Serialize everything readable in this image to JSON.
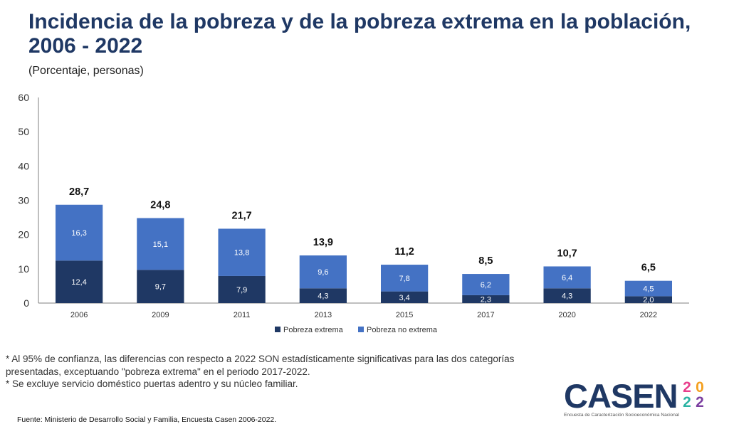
{
  "header": {
    "title": "Incidencia de la pobreza y de la pobreza extrema en la población, 2006 - 2022",
    "subtitle": "(Porcentaje, personas)"
  },
  "chart_data": {
    "type": "bar",
    "stacked": true,
    "categories": [
      "2006",
      "2009",
      "2011",
      "2013",
      "2015",
      "2017",
      "2020",
      "2022"
    ],
    "series": [
      {
        "name": "Pobreza extrema",
        "values": [
          12.4,
          9.7,
          7.9,
          4.3,
          3.4,
          2.3,
          4.3,
          2.0
        ],
        "labels": [
          "12,4",
          "9,7",
          "7,9",
          "4,3",
          "3,4",
          "2,3",
          "4,3",
          "2,0"
        ],
        "color": "#1f3864"
      },
      {
        "name": "Pobreza no extrema",
        "values": [
          16.3,
          15.1,
          13.8,
          9.6,
          7.8,
          6.2,
          6.4,
          4.5
        ],
        "labels": [
          "16,3",
          "15,1",
          "13,8",
          "9,6",
          "7,8",
          "6,2",
          "6,4",
          "4,5"
        ],
        "color": "#4472c4"
      }
    ],
    "totals": [
      28.7,
      24.8,
      21.7,
      13.9,
      11.2,
      8.5,
      10.7,
      6.5
    ],
    "total_labels": [
      "28,7",
      "24,8",
      "21,7",
      "13,9",
      "11,2",
      "8,5",
      "10,7",
      "6,5"
    ],
    "ylim": [
      0,
      60
    ],
    "yticks": [
      "0",
      "10",
      "20",
      "30",
      "40",
      "50",
      "60"
    ],
    "grid": false,
    "legend_position": "bottom"
  },
  "notes": [
    "* Al 95% de confianza, las diferencias con respecto a 2022 SON estadísticamente significativas para las dos categorías",
    "presentadas, exceptuando \"pobreza extrema\" en el periodo 2017-2022.",
    "* Se excluye servicio doméstico puertas adentro y su núcleo familiar."
  ],
  "source": "Fuente: Ministerio de Desarrollo Social y Familia, Encuesta Casen 2006-2022.",
  "logo": {
    "letters": [
      "C",
      "A",
      "S",
      "E",
      "N"
    ],
    "letter_colors": [
      "#1f3864",
      "#1f3864",
      "#1f3864",
      "#1f3864",
      "#1f3864"
    ],
    "year_digits": [
      "2",
      "0",
      "2",
      "2"
    ],
    "year_colors": [
      "#e83e8c",
      "#f4a020",
      "#2bb3a3",
      "#7b3fa0"
    ],
    "tagline": "Encuesta de Caracterización Socioeconómica Nacional"
  }
}
